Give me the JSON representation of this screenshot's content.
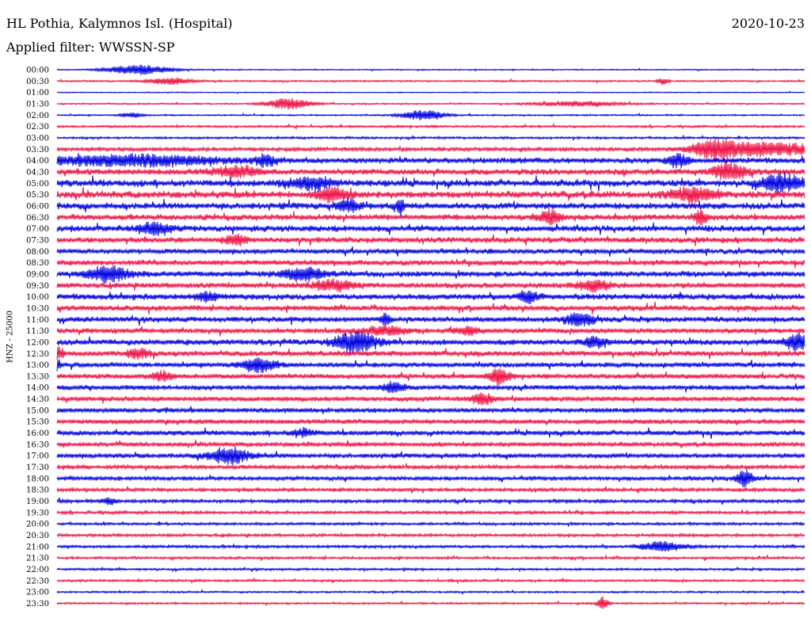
{
  "header": {
    "station": "HL Pothia, Kalymnos Isl. (Hospital)",
    "date": "2020-10-23",
    "filter": "Applied filter: WWSSN-SP"
  },
  "colors": {
    "even_trace": "#0000e0",
    "odd_trace": "#ee1144",
    "background": "#ffffff"
  },
  "chart_data": {
    "type": "line",
    "channel_label": "HNZ - 25000",
    "rows": [
      "00:00",
      "00:30",
      "01:00",
      "01:30",
      "02:00",
      "02:30",
      "03:00",
      "03:30",
      "04:00",
      "04:30",
      "05:00",
      "05:30",
      "06:00",
      "06:30",
      "07:00",
      "07:30",
      "08:00",
      "08:30",
      "09:00",
      "09:30",
      "10:00",
      "10:30",
      "11:00",
      "11:30",
      "12:00",
      "12:30",
      "13:00",
      "13:30",
      "14:00",
      "14:30",
      "15:00",
      "15:30",
      "16:00",
      "16:30",
      "17:00",
      "17:30",
      "18:00",
      "18:30",
      "19:00",
      "19:30",
      "20:00",
      "20:30",
      "21:00",
      "21:30",
      "22:00",
      "22:30",
      "23:00",
      "23:30"
    ],
    "noise_levels": [
      0.6,
      0.9,
      0.5,
      0.8,
      0.8,
      1.2,
      1.2,
      2.0,
      3.0,
      3.2,
      3.5,
      3.6,
      3.4,
      3.1,
      3.2,
      3.0,
      2.7,
      2.8,
      3.0,
      2.8,
      3.2,
      2.8,
      2.8,
      2.6,
      3.0,
      2.8,
      2.5,
      2.5,
      2.5,
      2.4,
      2.4,
      2.4,
      2.5,
      2.2,
      2.3,
      2.0,
      2.0,
      1.8,
      1.8,
      1.6,
      1.4,
      1.5,
      1.5,
      1.3,
      1.2,
      1.2,
      1.0,
      1.0
    ],
    "events": [
      {
        "row": 0,
        "t": 0.11,
        "amp": 6,
        "w": 0.03
      },
      {
        "row": 1,
        "t": 0.15,
        "amp": 4,
        "w": 0.02
      },
      {
        "row": 1,
        "t": 0.81,
        "amp": 4,
        "w": 0.005
      },
      {
        "row": 3,
        "t": 0.31,
        "amp": 7,
        "w": 0.02
      },
      {
        "row": 3,
        "t": 0.7,
        "amp": 3,
        "w": 0.04
      },
      {
        "row": 4,
        "t": 0.49,
        "amp": 6,
        "w": 0.02
      },
      {
        "row": 4,
        "t": 0.1,
        "amp": 3,
        "w": 0.01
      },
      {
        "row": 7,
        "t": 0.88,
        "amp": 10,
        "w": 0.02
      },
      {
        "row": 7,
        "t": 0.95,
        "amp": 8,
        "w": 0.05
      },
      {
        "row": 8,
        "t": 0.1,
        "amp": 6,
        "w": 0.08
      },
      {
        "row": 8,
        "t": 0.28,
        "amp": 6,
        "w": 0.01
      },
      {
        "row": 8,
        "t": 0.83,
        "amp": 8,
        "w": 0.01
      },
      {
        "row": 9,
        "t": 0.9,
        "amp": 10,
        "w": 0.015
      },
      {
        "row": 9,
        "t": 0.24,
        "amp": 6,
        "w": 0.02
      },
      {
        "row": 10,
        "t": 0.34,
        "amp": 7,
        "w": 0.02
      },
      {
        "row": 10,
        "t": 0.97,
        "amp": 10,
        "w": 0.02
      },
      {
        "row": 11,
        "t": 0.37,
        "amp": 8,
        "w": 0.015
      },
      {
        "row": 11,
        "t": 0.85,
        "amp": 8,
        "w": 0.02
      },
      {
        "row": 12,
        "t": 0.39,
        "amp": 7,
        "w": 0.01
      },
      {
        "row": 12,
        "t": 0.46,
        "amp": 10,
        "w": 0.003
      },
      {
        "row": 13,
        "t": 0.66,
        "amp": 8,
        "w": 0.01
      },
      {
        "row": 13,
        "t": 0.86,
        "amp": 10,
        "w": 0.005
      },
      {
        "row": 14,
        "t": 0.13,
        "amp": 7,
        "w": 0.015
      },
      {
        "row": 15,
        "t": 0.24,
        "amp": 6,
        "w": 0.01
      },
      {
        "row": 18,
        "t": 0.07,
        "amp": 9,
        "w": 0.02
      },
      {
        "row": 18,
        "t": 0.33,
        "amp": 8,
        "w": 0.02
      },
      {
        "row": 19,
        "t": 0.37,
        "amp": 6,
        "w": 0.02
      },
      {
        "row": 19,
        "t": 0.72,
        "amp": 6,
        "w": 0.015
      },
      {
        "row": 20,
        "t": 0.2,
        "amp": 5,
        "w": 0.01
      },
      {
        "row": 20,
        "t": 0.63,
        "amp": 6,
        "w": 0.01
      },
      {
        "row": 22,
        "t": 0.44,
        "amp": 6,
        "w": 0.005
      },
      {
        "row": 22,
        "t": 0.7,
        "amp": 7,
        "w": 0.015
      },
      {
        "row": 23,
        "t": 0.44,
        "amp": 5,
        "w": 0.02
      },
      {
        "row": 23,
        "t": 0.55,
        "amp": 5,
        "w": 0.01
      },
      {
        "row": 24,
        "t": 0.4,
        "amp": 12,
        "w": 0.02
      },
      {
        "row": 24,
        "t": 0.72,
        "amp": 6,
        "w": 0.01
      },
      {
        "row": 24,
        "t": 0.99,
        "amp": 10,
        "w": 0.01
      },
      {
        "row": 25,
        "t": 0.0,
        "amp": 8,
        "w": 0.005
      },
      {
        "row": 25,
        "t": 0.11,
        "amp": 6,
        "w": 0.01
      },
      {
        "row": 26,
        "t": 0.27,
        "amp": 9,
        "w": 0.015
      },
      {
        "row": 26,
        "t": 0.0,
        "amp": 7,
        "w": 0.003
      },
      {
        "row": 27,
        "t": 0.59,
        "amp": 9,
        "w": 0.01
      },
      {
        "row": 27,
        "t": 0.14,
        "amp": 6,
        "w": 0.01
      },
      {
        "row": 28,
        "t": 0.45,
        "amp": 6,
        "w": 0.01
      },
      {
        "row": 29,
        "t": 0.57,
        "amp": 7,
        "w": 0.01
      },
      {
        "row": 32,
        "t": 0.33,
        "amp": 5,
        "w": 0.01
      },
      {
        "row": 34,
        "t": 0.23,
        "amp": 10,
        "w": 0.02
      },
      {
        "row": 36,
        "t": 0.92,
        "amp": 10,
        "w": 0.008
      },
      {
        "row": 38,
        "t": 0.07,
        "amp": 5,
        "w": 0.005
      },
      {
        "row": 42,
        "t": 0.81,
        "amp": 6,
        "w": 0.02
      },
      {
        "row": 47,
        "t": 0.73,
        "amp": 8,
        "w": 0.005
      }
    ]
  }
}
